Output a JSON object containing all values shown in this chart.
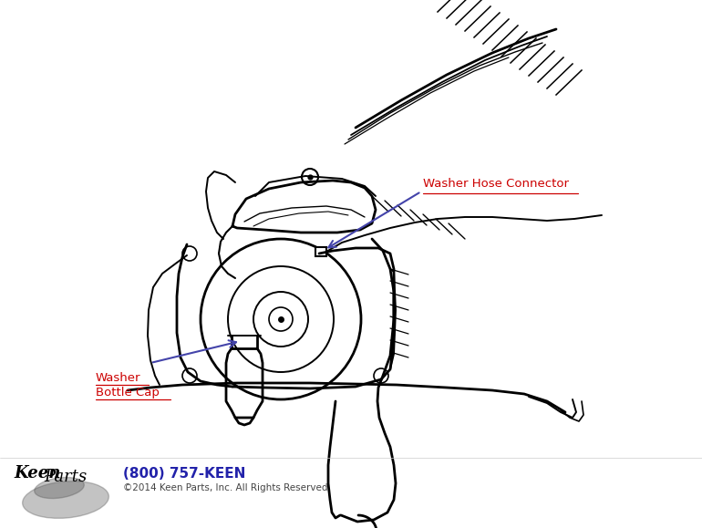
{
  "bg_color": "#ffffff",
  "line_color": "#000000",
  "label1_text": "Washer Hose Connector",
  "label1_color": "#cc0000",
  "label2_line1": "Washer",
  "label2_line2": "Bottle Cap",
  "label2_color": "#cc0000",
  "arrow_color": "#4444aa",
  "phone_text": "(800) 757-KEEN",
  "phone_color": "#2222aa",
  "copyright_text": "©2014 Keen Parts, Inc. All Rights Reserved",
  "copyright_color": "#444444",
  "fig_width": 7.7,
  "fig_height": 5.79,
  "dpi": 100
}
